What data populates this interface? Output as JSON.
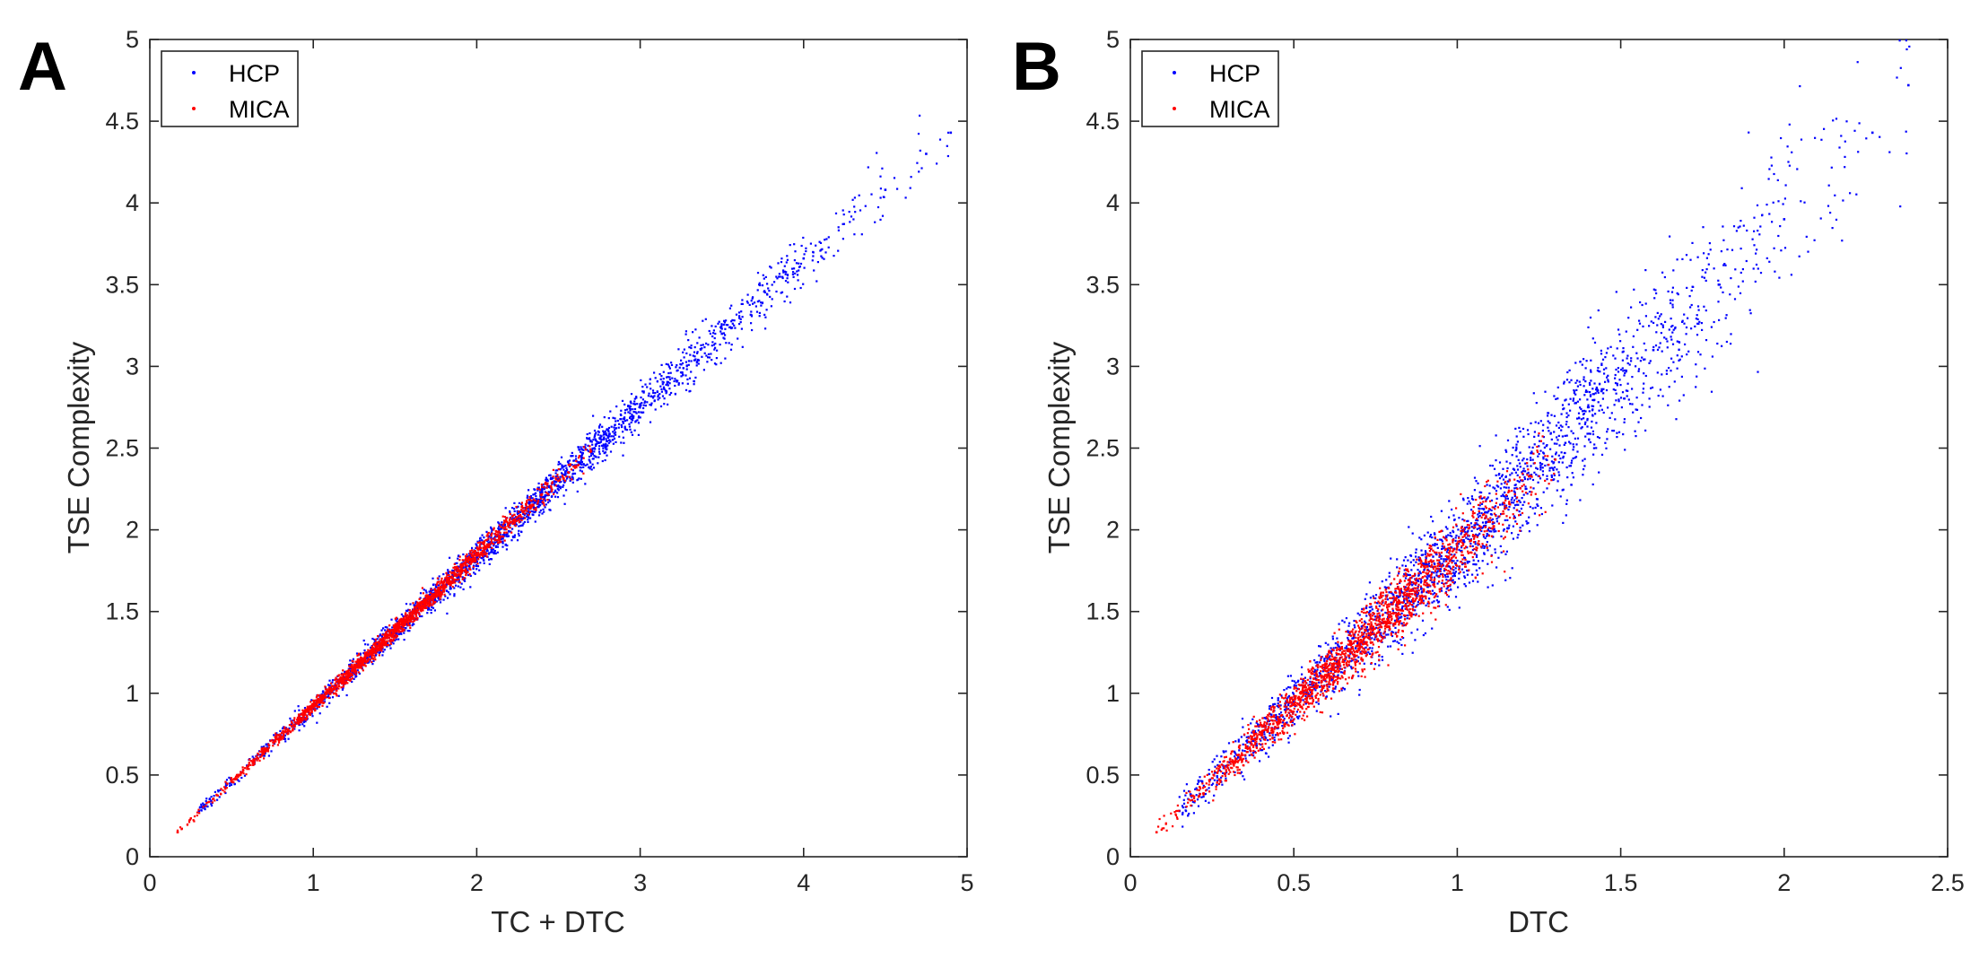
{
  "figure": {
    "panels": [
      "A",
      "B"
    ]
  },
  "colors": {
    "hcp": "#0000ff",
    "mica": "#ff0000",
    "axis": "#262626"
  },
  "chart_data": [
    {
      "panel_label": "A",
      "type": "scatter",
      "title": "",
      "xlabel": "TC + DTC",
      "ylabel": "TSE Complexity",
      "xlim": [
        0,
        5
      ],
      "ylim": [
        0,
        5
      ],
      "xticks": [
        0,
        1,
        2,
        3,
        4,
        5
      ],
      "xtick_labels": [
        "0",
        "1",
        "2",
        "3",
        "4",
        "5"
      ],
      "yticks": [
        0,
        0.5,
        1,
        1.5,
        2,
        2.5,
        3,
        3.5,
        4,
        4.5,
        5
      ],
      "ytick_labels": [
        "0",
        "0.5",
        "1",
        "1.5",
        "2",
        "2.5",
        "3",
        "3.5",
        "4",
        "4.5",
        "5"
      ],
      "legend": {
        "location": "top-left",
        "entries": [
          "HCP",
          "MICA"
        ]
      },
      "series": [
        {
          "name": "HCP",
          "color": "#0000ff",
          "marker": "point",
          "relation": "approximately linear; y ≈ 0.91·x, spread widens with x",
          "x_range": [
            0.3,
            4.9
          ],
          "density_center_x": 2.2,
          "points": [
            [
              0.3,
              0.28
            ],
            [
              1.0,
              0.92
            ],
            [
              1.6,
              1.47
            ],
            [
              2.0,
              1.83
            ],
            [
              2.5,
              2.3
            ],
            [
              3.0,
              2.76
            ],
            [
              3.5,
              3.2
            ],
            [
              4.0,
              3.66
            ],
            [
              4.5,
              4.08
            ],
            [
              4.75,
              4.3
            ],
            [
              4.9,
              4.43
            ]
          ]
        },
        {
          "name": "MICA",
          "color": "#ff0000",
          "marker": "point",
          "relation": "approximately linear; y ≈ 0.92·x",
          "x_range": [
            0.17,
            2.7
          ],
          "density_center_x": 1.5,
          "points": [
            [
              0.17,
              0.15
            ],
            [
              0.5,
              0.46
            ],
            [
              1.0,
              0.92
            ],
            [
              1.5,
              1.38
            ],
            [
              2.0,
              1.85
            ],
            [
              2.5,
              2.3
            ],
            [
              2.7,
              2.48
            ]
          ]
        }
      ]
    },
    {
      "panel_label": "B",
      "type": "scatter",
      "title": "",
      "xlabel": "DTC",
      "ylabel": "TSE Complexity",
      "xlim": [
        0,
        2.5
      ],
      "ylim": [
        0,
        5
      ],
      "xticks": [
        0,
        0.5,
        1,
        1.5,
        2,
        2.5
      ],
      "xtick_labels": [
        "0",
        "0.5",
        "1",
        "1.5",
        "2",
        "2.5"
      ],
      "yticks": [
        0,
        0.5,
        1,
        1.5,
        2,
        2.5,
        3,
        3.5,
        4,
        4.5,
        5
      ],
      "ytick_labels": [
        "0",
        "0.5",
        "1",
        "1.5",
        "2",
        "2.5",
        "3",
        "3.5",
        "4",
        "4.5",
        "5"
      ],
      "legend": {
        "location": "top-left",
        "entries": [
          "HCP",
          "MICA"
        ]
      },
      "series": [
        {
          "name": "HCP",
          "color": "#0000ff",
          "marker": "point",
          "relation": "approximately linear; y ≈ 1.95·x, wide spread at high x",
          "x_range": [
            0.15,
            2.4
          ],
          "density_center_x": 1.0,
          "points": [
            [
              0.15,
              0.28
            ],
            [
              0.5,
              0.95
            ],
            [
              1.0,
              1.9
            ],
            [
              1.2,
              2.3
            ],
            [
              1.4,
              2.75
            ],
            [
              1.6,
              3.1
            ],
            [
              1.8,
              3.5
            ],
            [
              2.0,
              3.9
            ],
            [
              2.27,
              4.43
            ],
            [
              2.38,
              4.72
            ]
          ]
        },
        {
          "name": "MICA",
          "color": "#ff0000",
          "marker": "point",
          "relation": "approximately linear; y ≈ 1.85·x",
          "x_range": [
            0.08,
            1.3
          ],
          "density_center_x": 0.7,
          "points": [
            [
              0.08,
              0.15
            ],
            [
              0.3,
              0.56
            ],
            [
              0.5,
              0.93
            ],
            [
              0.7,
              1.3
            ],
            [
              0.9,
              1.68
            ],
            [
              1.1,
              2.05
            ],
            [
              1.3,
              2.43
            ]
          ]
        }
      ]
    }
  ]
}
